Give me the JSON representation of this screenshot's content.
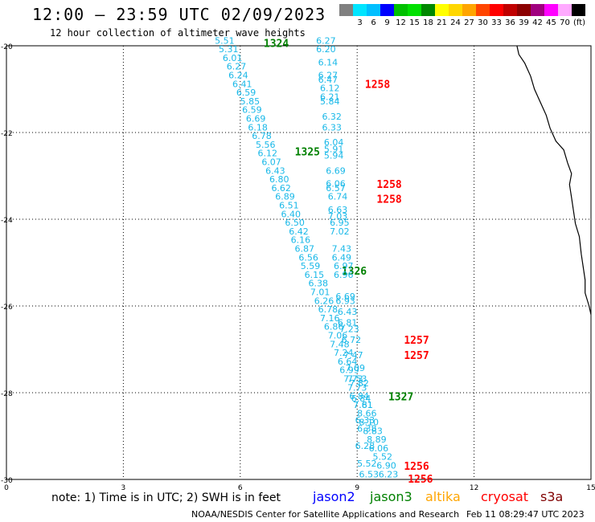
{
  "header": {
    "title": "12:00 – 23:59 UTC 02/09/2023",
    "subtitle": "12 hour collection of altimeter wave heights"
  },
  "colorbar": {
    "unit": "(ft)",
    "ticks": [
      {
        "label": "3",
        "color": "#00e5ff"
      },
      {
        "label": "6",
        "color": "#00bfff"
      },
      {
        "label": "9",
        "color": "#0000ff"
      },
      {
        "label": "12",
        "color": "#00c000"
      },
      {
        "label": "15",
        "color": "#00e000"
      },
      {
        "label": "18",
        "color": "#008800"
      },
      {
        "label": "21",
        "color": "#ffff00"
      },
      {
        "label": "24",
        "color": "#ffd700"
      },
      {
        "label": "27",
        "color": "#ffa500"
      },
      {
        "label": "30",
        "color": "#ff4500"
      },
      {
        "label": "33",
        "color": "#ff0000"
      },
      {
        "label": "36",
        "color": "#c00000"
      },
      {
        "label": "39",
        "color": "#8b0000"
      },
      {
        "label": "42",
        "color": "#a0007f"
      },
      {
        "label": "45",
        "color": "#ff00ff"
      },
      {
        "label": "70",
        "color": "#ffaaff"
      }
    ],
    "first_color": "#808080",
    "last_color": "#000000"
  },
  "map": {
    "y_ticks": [
      "-20",
      "-22",
      "-24",
      "-26",
      "-28",
      "-30"
    ],
    "x_ticks": [
      "0",
      "3",
      "6",
      "9",
      "12",
      "15"
    ],
    "lat_range": [
      -30,
      -20
    ],
    "lon_range": [
      0,
      15
    ],
    "coast_color": "#000000"
  },
  "tracks": [
    {
      "label": "1324",
      "color": "#008000",
      "label_pos": {
        "lon": 6.6,
        "lat": -19.95
      },
      "obs": [
        {
          "lon": 5.6,
          "lat": -19.95,
          "v": "5.51"
        },
        {
          "lon": 5.7,
          "lat": -20.15,
          "v": "5.31"
        },
        {
          "lon": 5.8,
          "lat": -20.35,
          "v": "6.01"
        },
        {
          "lon": 5.9,
          "lat": -20.55,
          "v": "6.27"
        },
        {
          "lon": 5.95,
          "lat": -20.75,
          "v": "6.24"
        },
        {
          "lon": 6.05,
          "lat": -20.95,
          "v": "6.41"
        },
        {
          "lon": 6.15,
          "lat": -21.15,
          "v": "6.59"
        },
        {
          "lon": 6.25,
          "lat": -21.35,
          "v": "5.85"
        },
        {
          "lon": 6.3,
          "lat": -21.55,
          "v": "6.59"
        },
        {
          "lon": 6.4,
          "lat": -21.75,
          "v": "6.69"
        },
        {
          "lon": 6.45,
          "lat": -21.95,
          "v": "6.18"
        },
        {
          "lon": 6.55,
          "lat": -22.15,
          "v": "6.78"
        },
        {
          "lon": 6.65,
          "lat": -22.35,
          "v": "5.56"
        },
        {
          "lon": 6.7,
          "lat": -22.55,
          "v": "6.12"
        },
        {
          "lon": 6.8,
          "lat": -22.75,
          "v": "6.07"
        },
        {
          "lon": 6.9,
          "lat": -22.95,
          "v": "6.43"
        },
        {
          "lon": 7.0,
          "lat": -23.15,
          "v": "6.80"
        },
        {
          "lon": 7.05,
          "lat": -23.35,
          "v": "6.62"
        },
        {
          "lon": 7.15,
          "lat": -23.55,
          "v": "6.89"
        },
        {
          "lon": 7.25,
          "lat": -23.75,
          "v": "6.51"
        },
        {
          "lon": 7.3,
          "lat": -23.95,
          "v": "6.40"
        },
        {
          "lon": 7.4,
          "lat": -24.15,
          "v": "6.50"
        },
        {
          "lon": 7.5,
          "lat": -24.35,
          "v": "6.42"
        },
        {
          "lon": 7.55,
          "lat": -24.55,
          "v": "6.16"
        },
        {
          "lon": 7.65,
          "lat": -24.75,
          "v": "6.87"
        },
        {
          "lon": 7.75,
          "lat": -24.95,
          "v": "6.56"
        },
        {
          "lon": 7.8,
          "lat": -25.15,
          "v": "5.59"
        },
        {
          "lon": 7.9,
          "lat": -25.35,
          "v": "6.15"
        },
        {
          "lon": 8.0,
          "lat": -25.55,
          "v": "6.38"
        },
        {
          "lon": 8.05,
          "lat": -25.75,
          "v": "7.01"
        },
        {
          "lon": 8.15,
          "lat": -25.95,
          "v": "6.26"
        },
        {
          "lon": 8.25,
          "lat": -26.15,
          "v": "6.78"
        },
        {
          "lon": 8.3,
          "lat": -26.35,
          "v": "7.16"
        },
        {
          "lon": 8.4,
          "lat": -26.55,
          "v": "6.86"
        },
        {
          "lon": 8.5,
          "lat": -26.75,
          "v": "7.06"
        },
        {
          "lon": 8.55,
          "lat": -26.95,
          "v": "7.48"
        },
        {
          "lon": 8.65,
          "lat": -27.15,
          "v": "7.24"
        },
        {
          "lon": 8.75,
          "lat": -27.35,
          "v": "6.64"
        },
        {
          "lon": 8.8,
          "lat": -27.55,
          "v": "6.99"
        },
        {
          "lon": 8.9,
          "lat": -27.75,
          "v": "7.73"
        },
        {
          "lon": 9.0,
          "lat": -27.95,
          "v": "7.73"
        },
        {
          "lon": 9.05,
          "lat": -28.15,
          "v": "6.84"
        },
        {
          "lon": 9.15,
          "lat": -28.35,
          "v": "7.81"
        },
        {
          "lon": 9.25,
          "lat": -28.55,
          "v": "8.66"
        },
        {
          "lon": 9.3,
          "lat": -28.75,
          "v": "8.10"
        },
        {
          "lon": 9.4,
          "lat": -28.95,
          "v": "8.83"
        },
        {
          "lon": 9.5,
          "lat": -29.15,
          "v": "8.89"
        },
        {
          "lon": 9.55,
          "lat": -29.35,
          "v": "6.06"
        },
        {
          "lon": 9.65,
          "lat": -29.55,
          "v": "5.52"
        },
        {
          "lon": 9.75,
          "lat": -29.75,
          "v": "6.90"
        },
        {
          "lon": 9.8,
          "lat": -29.95,
          "v": "6.23"
        }
      ]
    },
    {
      "label": "1325",
      "color": "#008000",
      "label_pos": {
        "lon": 7.4,
        "lat": -22.45
      },
      "obs": []
    },
    {
      "label": "1326",
      "color": "#008000",
      "label_pos": {
        "lon": 8.6,
        "lat": -25.2
      },
      "obs": []
    },
    {
      "label": "1327",
      "color": "#008000",
      "label_pos": {
        "lon": 9.8,
        "lat": -28.1
      },
      "obs": []
    },
    {
      "label": "1258",
      "color": "#ff0000",
      "label_pos": {
        "lon": 9.2,
        "lat": -20.9
      },
      "obs": [
        {
          "lon": 8.2,
          "lat": -19.95,
          "v": "6.27"
        },
        {
          "lon": 8.2,
          "lat": -20.15,
          "v": "6.20"
        },
        {
          "lon": 8.25,
          "lat": -20.45,
          "v": "6.14"
        },
        {
          "lon": 8.25,
          "lat": -20.75,
          "v": "6.27"
        },
        {
          "lon": 8.25,
          "lat": -20.85,
          "v": "6.47"
        },
        {
          "lon": 8.3,
          "lat": -21.05,
          "v": "6.12"
        },
        {
          "lon": 8.3,
          "lat": -21.25,
          "v": "6.21"
        },
        {
          "lon": 8.3,
          "lat": -21.35,
          "v": "5.84"
        },
        {
          "lon": 8.35,
          "lat": -21.7,
          "v": "6.32"
        },
        {
          "lon": 8.35,
          "lat": -21.95,
          "v": "6.33"
        },
        {
          "lon": 8.4,
          "lat": -22.3,
          "v": "6.04"
        },
        {
          "lon": 8.4,
          "lat": -22.45,
          "v": "5.91"
        },
        {
          "lon": 8.4,
          "lat": -22.6,
          "v": "5.94"
        },
        {
          "lon": 8.45,
          "lat": -22.95,
          "v": "6.69"
        },
        {
          "lon": 8.45,
          "lat": -23.25,
          "v": "6.06"
        },
        {
          "lon": 8.45,
          "lat": -23.35,
          "v": "6.57"
        },
        {
          "lon": 8.5,
          "lat": -23.55,
          "v": "6.74"
        },
        {
          "lon": 8.5,
          "lat": -23.85,
          "v": "6.63"
        },
        {
          "lon": 8.5,
          "lat": -24.0,
          "v": "7.03"
        },
        {
          "lon": 8.55,
          "lat": -24.15,
          "v": "6.95"
        },
        {
          "lon": 8.55,
          "lat": -24.35,
          "v": "7.02"
        },
        {
          "lon": 8.6,
          "lat": -24.75,
          "v": "7.43"
        },
        {
          "lon": 8.6,
          "lat": -24.95,
          "v": "6.49"
        },
        {
          "lon": 8.65,
          "lat": -25.15,
          "v": "6.97"
        },
        {
          "lon": 8.65,
          "lat": -25.35,
          "v": "6.96"
        },
        {
          "lon": 8.7,
          "lat": -25.85,
          "v": "6.69"
        },
        {
          "lon": 8.7,
          "lat": -25.95,
          "v": "6.93"
        },
        {
          "lon": 8.75,
          "lat": -26.2,
          "v": "6.43"
        },
        {
          "lon": 8.75,
          "lat": -26.45,
          "v": "6.81"
        },
        {
          "lon": 8.8,
          "lat": -26.6,
          "v": "7.23"
        },
        {
          "lon": 8.85,
          "lat": -26.85,
          "v": "6.72"
        },
        {
          "lon": 8.9,
          "lat": -27.2,
          "v": "7.47"
        },
        {
          "lon": 8.95,
          "lat": -27.5,
          "v": "7.09"
        },
        {
          "lon": 9.0,
          "lat": -27.75,
          "v": "7.53"
        },
        {
          "lon": 9.05,
          "lat": -27.85,
          "v": "7.82"
        },
        {
          "lon": 9.1,
          "lat": -28.2,
          "v": "6.84"
        },
        {
          "lon": 9.15,
          "lat": -28.35,
          "v": "7.61"
        },
        {
          "lon": 9.2,
          "lat": -28.7,
          "v": "6.33"
        },
        {
          "lon": 9.25,
          "lat": -28.9,
          "v": "6.38"
        },
        {
          "lon": 9.2,
          "lat": -29.3,
          "v": "6.28"
        },
        {
          "lon": 9.25,
          "lat": -29.7,
          "v": "5.52"
        },
        {
          "lon": 9.3,
          "lat": -29.95,
          "v": "6.53"
        }
      ]
    },
    {
      "label": "1258",
      "color": "#ff0000",
      "label_pos": {
        "lon": 9.5,
        "lat": -23.2
      },
      "obs": []
    },
    {
      "label": "1258",
      "color": "#ff0000",
      "label_pos": {
        "lon": 9.5,
        "lat": -23.55
      },
      "obs": []
    },
    {
      "label": "1257",
      "color": "#ff0000",
      "label_pos": {
        "lon": 10.2,
        "lat": -26.8
      },
      "obs": []
    },
    {
      "label": "1257",
      "color": "#ff0000",
      "label_pos": {
        "lon": 10.2,
        "lat": -27.15
      },
      "obs": []
    },
    {
      "label": "1256",
      "color": "#ff0000",
      "label_pos": {
        "lon": 10.2,
        "lat": -29.7
      },
      "obs": []
    },
    {
      "label": "1256",
      "color": "#ff0000",
      "label_pos": {
        "lon": 10.3,
        "lat": -30.0
      },
      "obs": []
    }
  ],
  "obs_color": "#19b8e8",
  "footer": {
    "note": "note: 1) Time is in UTC; 2) SWH is in feet",
    "satellites": [
      {
        "name": "jason2",
        "color": "#0000ff"
      },
      {
        "name": "jason3",
        "color": "#008000"
      },
      {
        "name": "altika",
        "color": "#ffa500"
      },
      {
        "name": "cryosat",
        "color": "#ff0000"
      },
      {
        "name": "s3a",
        "color": "#800000"
      }
    ],
    "credit": "NOAA/NESDIS Center for Satellite Applications and Research",
    "timestamp": "Feb 11 08:29:47 UTC 2023"
  }
}
